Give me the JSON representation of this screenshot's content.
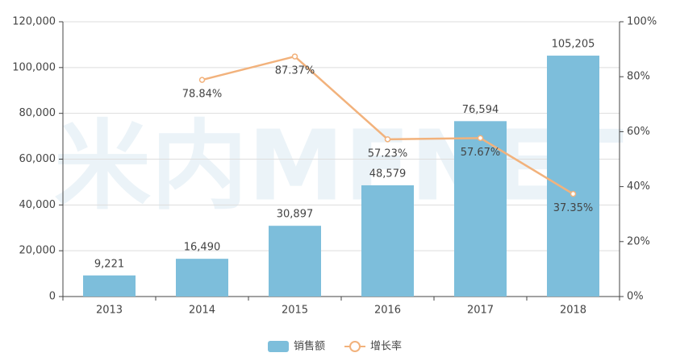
{
  "chart_data": {
    "type": "bar",
    "watermark": "米内MENET",
    "categories": [
      "2013",
      "2014",
      "2015",
      "2016",
      "2017",
      "2018"
    ],
    "series": [
      {
        "name": "销售额",
        "type": "bar",
        "color": "#7dbedb",
        "values": [
          9221,
          16490,
          30897,
          48579,
          76594,
          105205
        ],
        "value_labels": [
          "9,221",
          "16,490",
          "30,897",
          "48,579",
          "76,594",
          "105,205"
        ]
      },
      {
        "name": "增长率",
        "type": "line",
        "axis": "y2",
        "color": "#f2b27c",
        "values": [
          null,
          78.84,
          87.37,
          57.23,
          57.67,
          37.35
        ],
        "value_labels": [
          null,
          "78.84%",
          "87.37%",
          "57.23%",
          "57.67%",
          "37.35%"
        ]
      }
    ],
    "ylim": [
      0,
      120000
    ],
    "yticks": [
      {
        "value": 0,
        "label": "0"
      },
      {
        "value": 20000,
        "label": "20,000"
      },
      {
        "value": 40000,
        "label": "40,000"
      },
      {
        "value": 60000,
        "label": "60,000"
      },
      {
        "value": 80000,
        "label": "80,000"
      },
      {
        "value": 100000,
        "label": "100,000"
      },
      {
        "value": 120000,
        "label": "120,000"
      }
    ],
    "y2lim": [
      0,
      100
    ],
    "y2ticks": [
      {
        "value": 0,
        "label": "0%"
      },
      {
        "value": 20,
        "label": "20%"
      },
      {
        "value": 40,
        "label": "40%"
      },
      {
        "value": 60,
        "label": "60%"
      },
      {
        "value": 80,
        "label": "80%"
      },
      {
        "value": 100,
        "label": "100%"
      }
    ],
    "grid": true,
    "legend": "bottom"
  }
}
